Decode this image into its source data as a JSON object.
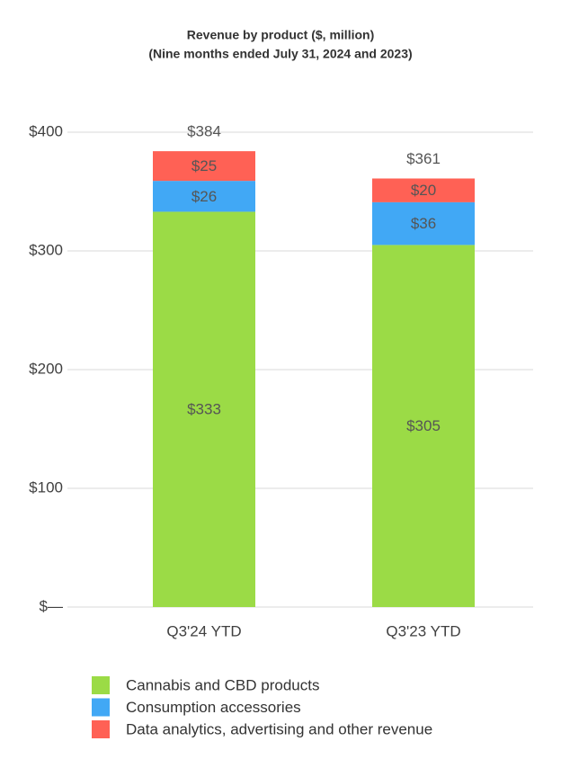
{
  "chart_data": {
    "type": "stacked-bar",
    "title": "Revenue by product ($, million)",
    "subtitle": "(Nine months ended July 31, 2024 and 2023)",
    "categories": [
      "Q3'24 YTD",
      "Q3'23 YTD"
    ],
    "series": [
      {
        "name": "Cannabis and CBD products",
        "color": "#9bdb46",
        "values": [
          333,
          305
        ],
        "value_labels": [
          "$333",
          "$305"
        ]
      },
      {
        "name": "Consumption accessories",
        "color": "#41a8f5",
        "values": [
          26,
          36
        ],
        "value_labels": [
          "$26",
          "$36"
        ]
      },
      {
        "name": "Data analytics, advertising and other revenue",
        "color": "#ff6155",
        "values": [
          25,
          20
        ],
        "value_labels": [
          "$25",
          "$20"
        ]
      }
    ],
    "totals": [
      384,
      361
    ],
    "total_labels": [
      "$384",
      "$361"
    ],
    "ylim": [
      0,
      400
    ],
    "yticks": [
      {
        "value": 0,
        "label": "$—"
      },
      {
        "value": 100,
        "label": "$100"
      },
      {
        "value": 200,
        "label": "$200"
      },
      {
        "value": 300,
        "label": "$300"
      },
      {
        "value": 400,
        "label": "$400"
      }
    ],
    "grid": true
  }
}
